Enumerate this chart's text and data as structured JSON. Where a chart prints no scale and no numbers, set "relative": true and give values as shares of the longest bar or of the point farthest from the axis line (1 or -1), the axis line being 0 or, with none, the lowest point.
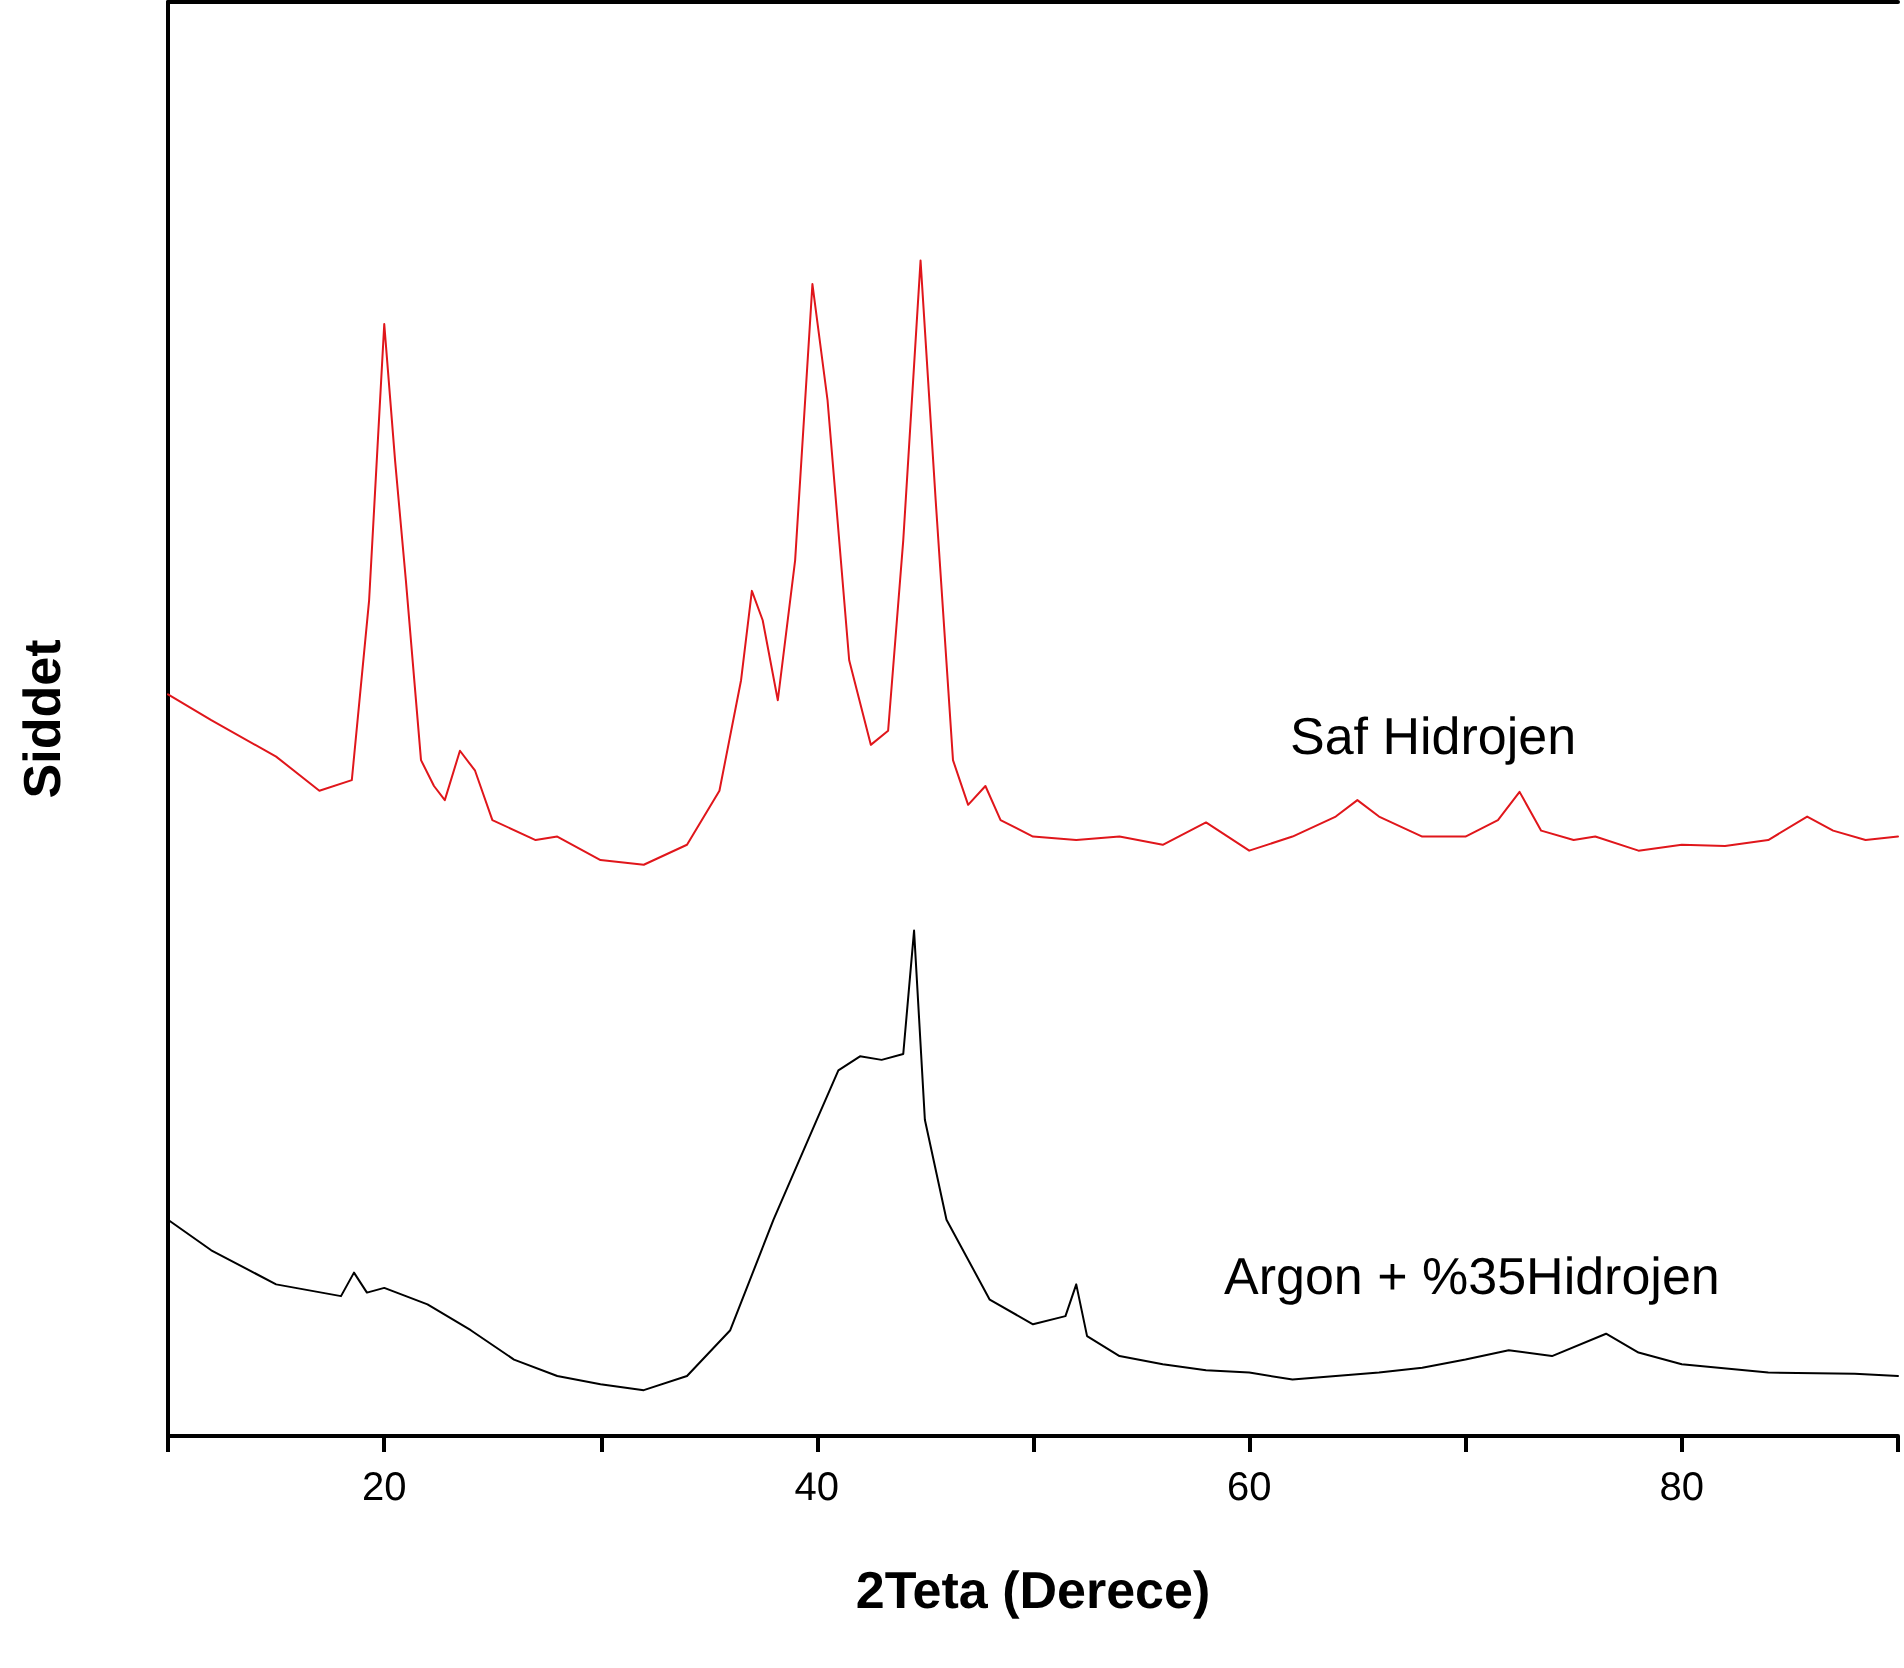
{
  "chart_data": {
    "type": "line",
    "xlabel": "2Teta (Derece)",
    "ylabel": "Siddet",
    "relative": true,
    "xlim": [
      10,
      90
    ],
    "xticks": [
      {
        "value": 10,
        "label": null
      },
      20,
      {
        "value": 30,
        "label": null
      },
      40,
      {
        "value": 50,
        "label": null
      },
      60,
      {
        "value": 70,
        "label": null
      },
      80,
      {
        "value": 90,
        "label": null
      }
    ],
    "grid": false,
    "legend": false,
    "marker": "none",
    "line_style": "solid",
    "series": [
      {
        "name": "Saf Hidrojen",
        "color": "#e0161b",
        "x": [
          10,
          12,
          15,
          17,
          18.5,
          19.3,
          20,
          20.5,
          21,
          21.7,
          22.3,
          22.8,
          23.5,
          24.2,
          25,
          27,
          28,
          30,
          32,
          34,
          35.5,
          36.5,
          37,
          37.5,
          38.2,
          39,
          39.8,
          40.5,
          41.5,
          42.5,
          43.3,
          44,
          44.8,
          45.5,
          46.3,
          47,
          47.8,
          48.5,
          50,
          52,
          54,
          56,
          58,
          60,
          62,
          64,
          65,
          66,
          68,
          70,
          71.5,
          72.5,
          73.5,
          75,
          76,
          78,
          80,
          82,
          84,
          85.8,
          87,
          88.5,
          90
        ],
        "values": [
          0.631,
          0.609,
          0.578,
          0.549,
          0.558,
          0.711,
          0.946,
          0.83,
          0.728,
          0.575,
          0.553,
          0.541,
          0.583,
          0.566,
          0.524,
          0.507,
          0.51,
          0.49,
          0.486,
          0.503,
          0.549,
          0.643,
          0.719,
          0.694,
          0.626,
          0.745,
          0.98,
          0.881,
          0.66,
          0.588,
          0.6,
          0.762,
          1,
          0.796,
          0.575,
          0.537,
          0.553,
          0.524,
          0.51,
          0.507,
          0.51,
          0.503,
          0.522,
          0.498,
          0.51,
          0.527,
          0.541,
          0.527,
          0.51,
          0.51,
          0.524,
          0.548,
          0.515,
          0.507,
          0.51,
          0.498,
          0.503,
          0.502,
          0.507,
          0.527,
          0.515,
          0.507,
          0.51
        ]
      },
      {
        "name": "Argon + %35Hidrojen",
        "color": "#000000",
        "x": [
          10,
          12,
          15,
          18,
          18.6,
          19.2,
          20,
          22,
          24,
          26,
          28,
          30,
          32,
          34,
          36,
          38,
          40,
          41,
          42,
          43,
          44,
          44.5,
          45,
          46,
          48,
          50,
          51.5,
          52,
          52.5,
          54,
          56,
          58,
          60,
          62,
          64,
          66,
          68,
          70,
          72,
          74,
          76.5,
          78,
          80,
          84,
          88,
          90
        ],
        "values": [
          0.184,
          0.158,
          0.129,
          0.119,
          0.139,
          0.122,
          0.126,
          0.112,
          0.09,
          0.065,
          0.051,
          0.044,
          0.039,
          0.051,
          0.09,
          0.184,
          0.269,
          0.311,
          0.323,
          0.32,
          0.325,
          0.43,
          0.269,
          0.184,
          0.116,
          0.095,
          0.102,
          0.129,
          0.085,
          0.068,
          0.061,
          0.056,
          0.054,
          0.048,
          0.051,
          0.054,
          0.058,
          0.065,
          0.073,
          0.068,
          0.087,
          0.071,
          0.061,
          0.054,
          0.053,
          0.051
        ]
      }
    ]
  }
}
